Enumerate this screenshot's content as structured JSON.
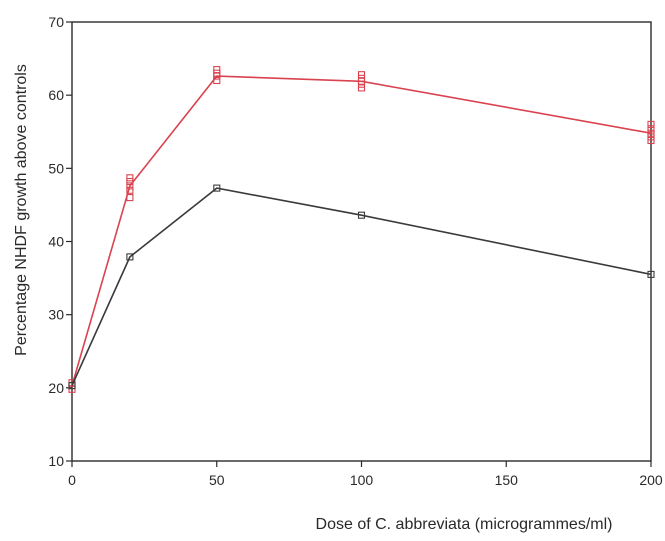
{
  "chart_data": {
    "type": "line",
    "title": "",
    "xlabel": "Dose of C. abbreviata (microgrammes/ml)",
    "ylabel": "Percentage NHDF growth above controls",
    "xlim": [
      0,
      200
    ],
    "ylim": [
      10,
      70
    ],
    "xticks": [
      "0",
      "50",
      "100",
      "150",
      "200"
    ],
    "yticks": [
      "10",
      "20",
      "30",
      "40",
      "50",
      "60",
      "70"
    ],
    "grid": false,
    "legend": "none",
    "series": [
      {
        "color": "#d9434f",
        "marker": "square",
        "x": [
          0,
          20,
          50,
          100,
          200
        ],
        "y": [
          20.3,
          47.6,
          62.6,
          61.9,
          54.8
        ],
        "replicates": [
          [
            19.8,
            20.3,
            20.7
          ],
          [
            46.0,
            47.0,
            47.6,
            48.2,
            48.7
          ],
          [
            62.0,
            62.6,
            63.0,
            63.5
          ],
          [
            61.0,
            61.5,
            61.9,
            62.3,
            62.8
          ],
          [
            53.8,
            54.3,
            54.8,
            55.4,
            56.0
          ]
        ]
      },
      {
        "color": "#3a3a3a",
        "marker": "square",
        "x": [
          0,
          20,
          50,
          100,
          200
        ],
        "y": [
          20.3,
          37.9,
          47.3,
          43.6,
          35.5
        ]
      }
    ]
  }
}
